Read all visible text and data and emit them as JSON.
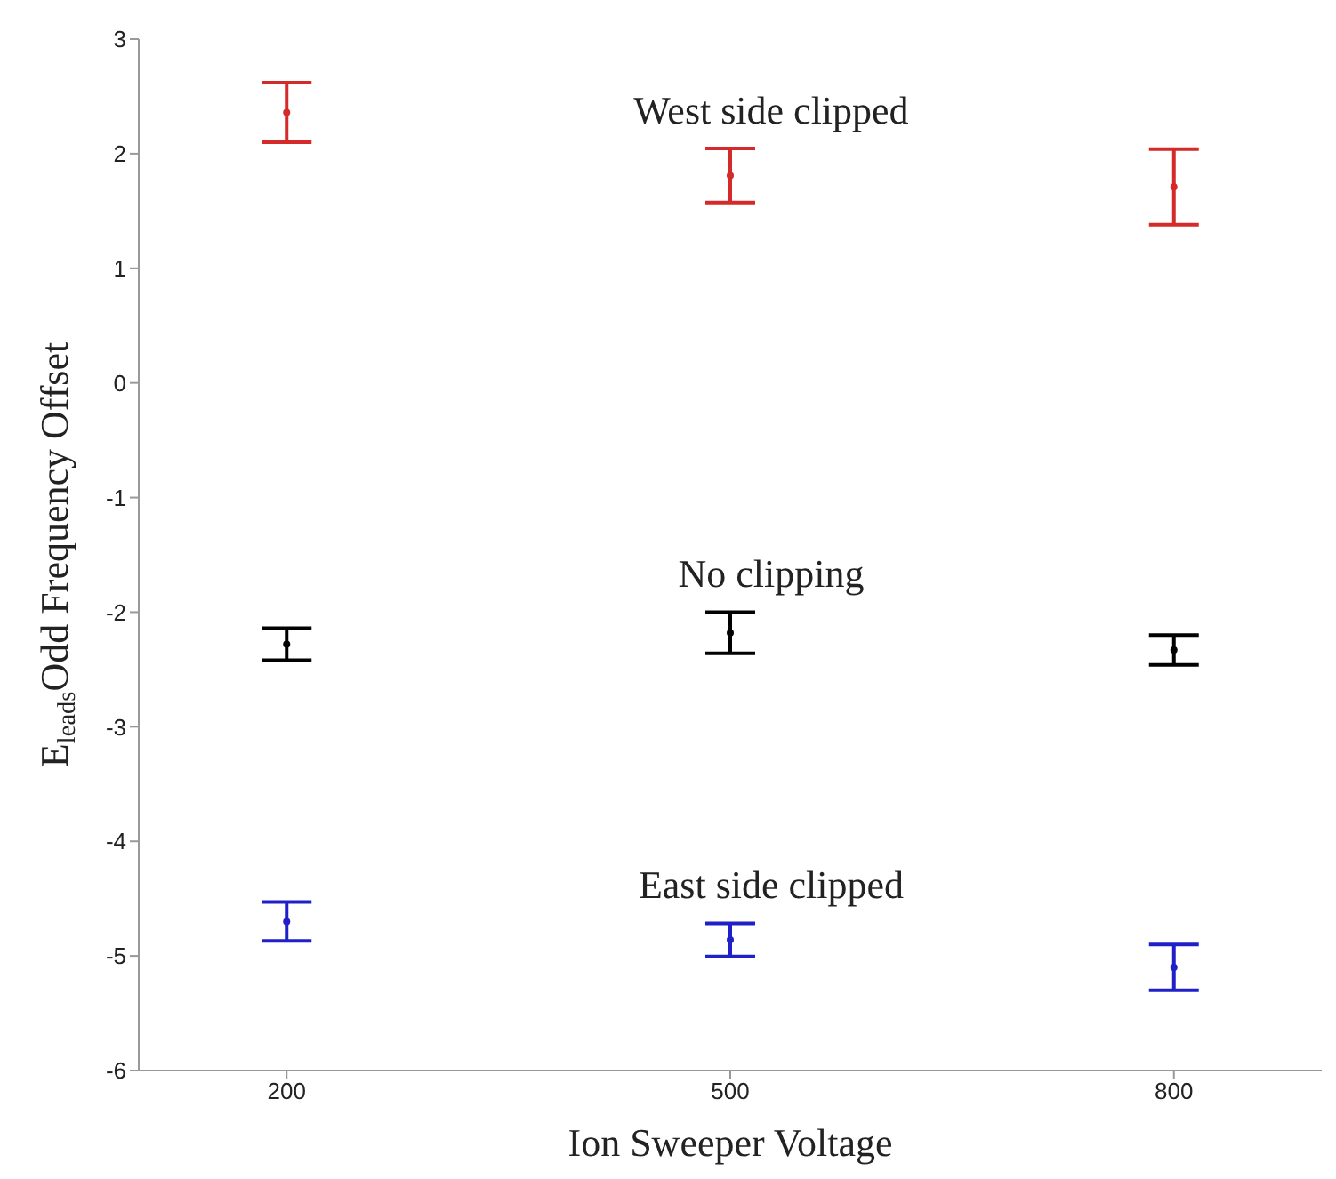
{
  "chart_data": {
    "type": "scatter",
    "xlabel": "Ion Sweeper Voltage",
    "ylabel": "E$_{leads}$Odd Frequency Offset",
    "x": [
      200,
      500,
      800
    ],
    "xlim": [
      100,
      900
    ],
    "xticks": [
      200,
      500,
      800
    ],
    "ylim": [
      -6,
      3
    ],
    "yticks": [
      -6,
      -5,
      -4,
      -3,
      -2,
      -1,
      0,
      1,
      2,
      3
    ],
    "series": [
      {
        "color": "#d42a2a",
        "values": [
          2.36,
          1.81,
          1.71
        ],
        "errors": [
          0.26,
          0.235,
          0.33
        ]
      },
      {
        "color": "#000000",
        "values": [
          -2.28,
          -2.18,
          -2.33
        ],
        "errors": [
          0.14,
          0.18,
          0.13
        ]
      },
      {
        "color": "#2020c8",
        "values": [
          -4.7,
          -4.86,
          -5.1
        ],
        "errors": [
          0.17,
          0.145,
          0.2
        ]
      }
    ],
    "annotations": [
      "West side clipped",
      "No clipping",
      "East side clipped"
    ]
  }
}
